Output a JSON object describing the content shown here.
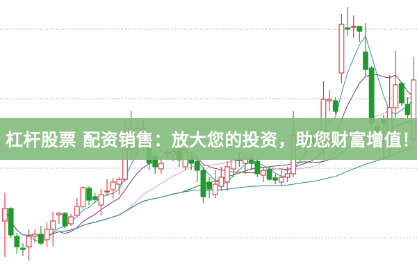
{
  "banner": {
    "text": "杠杆股票 配资销售：放大您的投资，助您财富增值！"
  },
  "chart_data": {
    "type": "candlestick",
    "title": "",
    "xlabel": "",
    "ylabel": "",
    "ylim": [
      0,
      40
    ],
    "grid": "horizontal-dotted",
    "grid_levels": [
      5.8,
      15.8,
      25.8,
      35.8
    ],
    "colors": {
      "up": "#e03c3c",
      "down": "#1e9a2e",
      "grid": "#999999",
      "ma": [
        "#3a9aa6",
        "#8a3f74",
        "#e59ee0",
        "#3f7a34",
        "#2f8f98"
      ]
    },
    "moving_averages": [
      5,
      10,
      20,
      30,
      60
    ],
    "ohlc": [
      [
        8.2,
        12.2,
        3.0,
        10.0
      ],
      [
        10.0,
        10.2,
        5.8,
        6.2
      ],
      [
        6.0,
        6.5,
        3.5,
        4.5
      ],
      [
        4.3,
        5.0,
        3.2,
        4.1
      ],
      [
        4.5,
        7.0,
        2.5,
        6.0
      ],
      [
        6.0,
        7.0,
        5.0,
        6.3
      ],
      [
        6.3,
        7.5,
        4.8,
        5.0
      ],
      [
        5.5,
        8.0,
        4.5,
        7.0
      ],
      [
        7.0,
        9.5,
        4.5,
        8.2
      ],
      [
        9.1,
        9.5,
        7.8,
        9.3
      ],
      [
        9.3,
        9.5,
        7.2,
        7.5
      ],
      [
        7.8,
        9.2,
        7.5,
        8.8
      ],
      [
        9.0,
        11.5,
        9.0,
        10.3
      ],
      [
        10.3,
        13.2,
        10.0,
        13.0
      ],
      [
        12.9,
        13.2,
        10.5,
        11.2
      ],
      [
        11.7,
        12.2,
        10.8,
        11.3
      ],
      [
        10.5,
        12.8,
        9.0,
        12.0
      ],
      [
        12.4,
        14.2,
        11.8,
        12.5
      ],
      [
        12.7,
        14.4,
        11.5,
        13.8
      ],
      [
        13.5,
        14.5,
        12.0,
        14.2
      ],
      [
        14.2,
        22.5,
        13.8,
        19.5
      ],
      [
        18.5,
        24.0,
        17.0,
        21.5
      ],
      [
        19.5,
        22.5,
        18.5,
        21.5
      ],
      [
        20.0,
        22.8,
        18.2,
        21.5
      ],
      [
        19.5,
        20.2,
        15.5,
        16.5
      ],
      [
        17.5,
        18.0,
        15.0,
        16.0
      ],
      [
        15.7,
        17.2,
        15.0,
        16.5
      ],
      [
        18.1,
        18.5,
        17.2,
        17.9
      ],
      [
        17.8,
        18.8,
        16.8,
        18.2
      ],
      [
        18.5,
        19.0,
        16.0,
        17.0
      ],
      [
        16.0,
        19.0,
        15.5,
        18.0
      ],
      [
        17.2,
        17.8,
        15.5,
        16.5
      ],
      [
        16.8,
        17.2,
        13.8,
        15.5
      ],
      [
        15.5,
        16.0,
        10.8,
        11.7
      ],
      [
        13.8,
        14.5,
        11.5,
        12.8
      ],
      [
        12.0,
        15.5,
        11.5,
        13.5
      ],
      [
        13.2,
        16.0,
        12.5,
        14.5
      ],
      [
        13.8,
        16.8,
        12.5,
        16.0
      ],
      [
        15.7,
        17.8,
        14.5,
        17.0
      ],
      [
        17.1,
        18.0,
        16.0,
        16.9
      ],
      [
        16.5,
        17.8,
        15.0,
        17.2
      ],
      [
        17.2,
        18.0,
        15.5,
        16.5
      ],
      [
        16.8,
        17.2,
        14.5,
        15.0
      ],
      [
        14.8,
        16.0,
        13.8,
        15.5
      ],
      [
        15.5,
        16.0,
        14.0,
        14.2
      ],
      [
        14.4,
        15.0,
        13.5,
        14.1
      ],
      [
        13.8,
        15.5,
        13.2,
        14.5
      ],
      [
        14.5,
        16.0,
        13.8,
        15.0
      ],
      [
        15.0,
        24.0,
        14.5,
        20.5
      ],
      [
        20.5,
        21.5,
        18.5,
        19.5
      ],
      [
        19.0,
        21.0,
        18.0,
        20.5
      ],
      [
        20.2,
        21.0,
        18.8,
        19.5
      ],
      [
        19.5,
        21.5,
        18.5,
        21.0
      ],
      [
        18.5,
        28.3,
        17.5,
        25.7
      ],
      [
        25.5,
        27.0,
        24.0,
        25.7
      ],
      [
        25.5,
        26.0,
        23.5,
        24.0
      ],
      [
        29.5,
        38.0,
        28.0,
        36.5
      ],
      [
        36.0,
        39.0,
        34.8,
        35.8
      ],
      [
        36.1,
        37.8,
        34.5,
        36.2
      ],
      [
        36.2,
        36.2,
        34.0,
        35.5
      ],
      [
        32.5,
        36.7,
        29.0,
        30.0
      ],
      [
        30.2,
        30.5,
        21.8,
        22.3
      ],
      [
        21.8,
        22.5,
        20.0,
        21.0
      ],
      [
        22.8,
        23.5,
        17.0,
        22.3
      ],
      [
        21.2,
        29.2,
        17.5,
        24.5
      ],
      [
        24.5,
        32.7,
        23.0,
        27.8
      ],
      [
        28.0,
        28.2,
        24.8,
        25.2
      ],
      [
        25.0,
        26.0,
        23.0,
        23.5
      ],
      [
        20.0,
        31.8,
        19.5,
        28.5
      ]
    ]
  }
}
